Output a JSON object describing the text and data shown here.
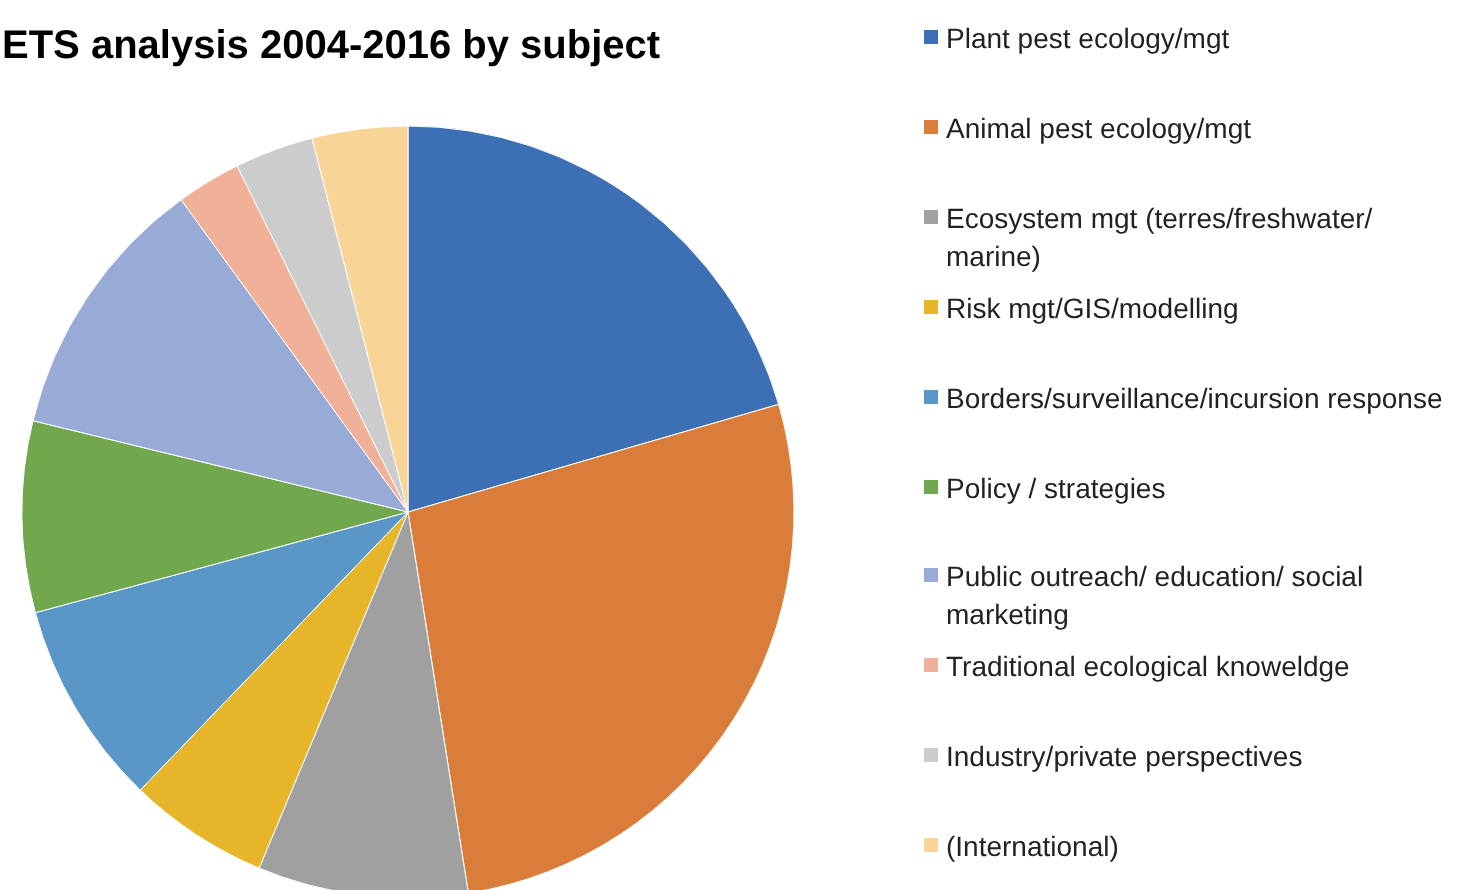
{
  "chart_data": {
    "type": "pie",
    "title": "ETS analysis 2004-2016 by subject",
    "categories": [
      "Plant pest ecology/mgt",
      "Animal pest ecology/mgt",
      "Ecosystem mgt (terres/freshwater/ marine)",
      "Risk mgt/GIS/modelling",
      "Borders/surveillance/incursion response",
      "Policy / strategies",
      "Public outreach/ education/ social marketing",
      "Traditional ecological knoweldge",
      "Industry/private perspectives",
      "(International)"
    ],
    "values": [
      20.5,
      27.0,
      8.8,
      5.9,
      8.6,
      8.0,
      11.2,
      2.7,
      3.3,
      4.0
    ],
    "colors": [
      "#3d6fb5",
      "#db7d3a",
      "#a0a0a0",
      "#e6b52a",
      "#5897c8",
      "#72a84d",
      "#98aad6",
      "#f1b198",
      "#cccccc",
      "#f8d597"
    ],
    "legend": "right"
  }
}
